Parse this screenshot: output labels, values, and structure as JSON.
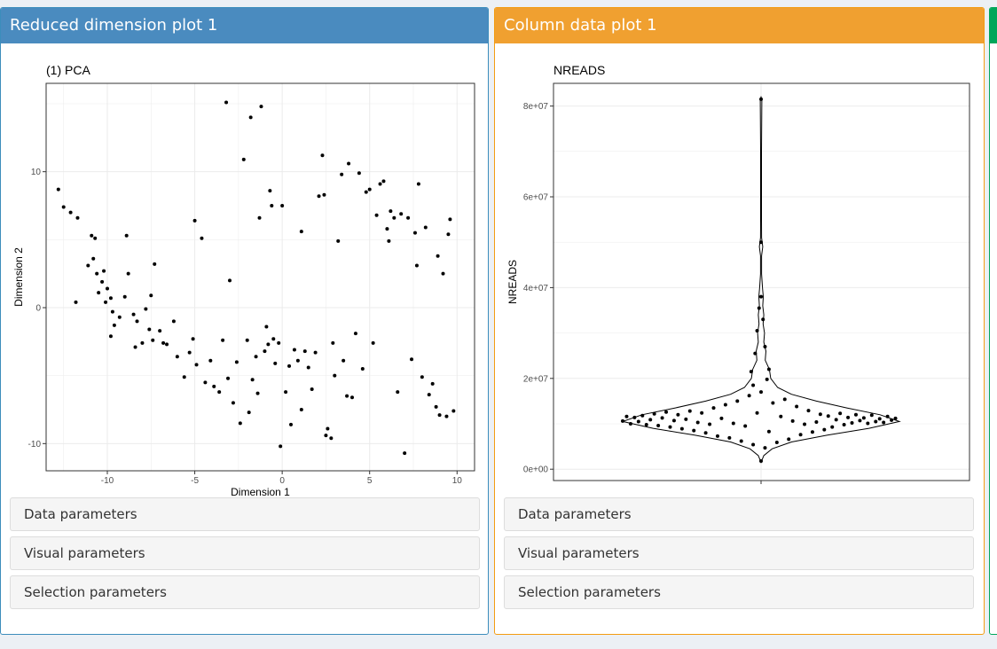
{
  "panels": {
    "left": {
      "title": "Reduced dimension plot 1",
      "accent": "#4a8bbf"
    },
    "middle": {
      "title": "Column data plot 1",
      "accent": "#f0a030"
    },
    "right": {
      "accent": "#00a65a"
    }
  },
  "accordions": {
    "left": [
      "Data parameters",
      "Visual parameters",
      "Selection parameters"
    ],
    "middle": [
      "Data parameters",
      "Visual parameters",
      "Selection parameters"
    ]
  },
  "chart_data": [
    {
      "type": "scatter",
      "title": "(1) PCA",
      "xlabel": "Dimension 1",
      "ylabel": "Dimension 2",
      "xlim": [
        -13.5,
        11
      ],
      "ylim": [
        -12,
        16.5
      ],
      "xticks": [
        -10,
        -5,
        0,
        5,
        10
      ],
      "yticks": [
        -10,
        0,
        10
      ],
      "grid": true,
      "points": [
        [
          -12.8,
          8.7
        ],
        [
          -12.5,
          7.4
        ],
        [
          -12.1,
          7.0
        ],
        [
          -11.7,
          6.6
        ],
        [
          -11.8,
          0.4
        ],
        [
          -11.1,
          3.1
        ],
        [
          -10.9,
          5.3
        ],
        [
          -10.7,
          5.1
        ],
        [
          -10.8,
          3.6
        ],
        [
          -10.6,
          2.5
        ],
        [
          -10.3,
          1.9
        ],
        [
          -10.2,
          2.7
        ],
        [
          -10.0,
          1.4
        ],
        [
          -10.5,
          1.1
        ],
        [
          -9.8,
          0.7
        ],
        [
          -10.1,
          0.4
        ],
        [
          -9.7,
          -0.3
        ],
        [
          -9.6,
          -1.3
        ],
        [
          -9.8,
          -2.1
        ],
        [
          -9.3,
          -0.7
        ],
        [
          -9.0,
          0.8
        ],
        [
          -8.8,
          2.5
        ],
        [
          -8.9,
          5.3
        ],
        [
          -8.5,
          -0.5
        ],
        [
          -8.3,
          -1.0
        ],
        [
          -8.4,
          -2.9
        ],
        [
          -8.0,
          -2.6
        ],
        [
          -7.8,
          -0.1
        ],
        [
          -7.6,
          -1.6
        ],
        [
          -7.4,
          -2.4
        ],
        [
          -7.5,
          0.9
        ],
        [
          -7.3,
          3.2
        ],
        [
          -7.0,
          -1.7
        ],
        [
          -6.8,
          -2.6
        ],
        [
          -6.6,
          -2.7
        ],
        [
          -6.2,
          -1.0
        ],
        [
          -6.0,
          -3.6
        ],
        [
          -5.6,
          -5.1
        ],
        [
          -5.3,
          -3.3
        ],
        [
          -5.1,
          -2.3
        ],
        [
          -4.9,
          -4.2
        ],
        [
          -5.0,
          6.4
        ],
        [
          -4.6,
          5.1
        ],
        [
          -4.4,
          -5.5
        ],
        [
          -4.1,
          -3.9
        ],
        [
          -3.9,
          -5.8
        ],
        [
          -3.6,
          -6.2
        ],
        [
          -3.4,
          -2.4
        ],
        [
          -3.1,
          -5.2
        ],
        [
          -3.2,
          15.1
        ],
        [
          -3.0,
          2.0
        ],
        [
          -2.8,
          -7.0
        ],
        [
          -2.6,
          -4.0
        ],
        [
          -2.4,
          -8.5
        ],
        [
          -2.2,
          10.9
        ],
        [
          -2.0,
          -2.4
        ],
        [
          -1.9,
          -7.7
        ],
        [
          -1.8,
          14.0
        ],
        [
          -1.7,
          -5.3
        ],
        [
          -1.5,
          -3.6
        ],
        [
          -1.4,
          -6.3
        ],
        [
          -1.3,
          6.6
        ],
        [
          -1.2,
          14.8
        ],
        [
          -1.0,
          -3.2
        ],
        [
          -0.9,
          -1.4
        ],
        [
          -0.8,
          -2.7
        ],
        [
          -0.7,
          8.6
        ],
        [
          -0.6,
          7.5
        ],
        [
          -0.5,
          -2.3
        ],
        [
          -0.4,
          -4.1
        ],
        [
          -0.2,
          -2.6
        ],
        [
          0.0,
          7.5
        ],
        [
          -0.1,
          -10.2
        ],
        [
          0.2,
          -6.2
        ],
        [
          0.4,
          -4.3
        ],
        [
          0.5,
          -8.6
        ],
        [
          0.7,
          -3.1
        ],
        [
          0.9,
          -3.9
        ],
        [
          1.1,
          -7.5
        ],
        [
          1.1,
          5.6
        ],
        [
          1.3,
          -3.2
        ],
        [
          1.5,
          -4.4
        ],
        [
          1.7,
          -6.0
        ],
        [
          1.9,
          -3.3
        ],
        [
          2.1,
          8.2
        ],
        [
          2.3,
          11.2
        ],
        [
          2.4,
          8.3
        ],
        [
          2.5,
          -9.4
        ],
        [
          2.6,
          -8.9
        ],
        [
          2.8,
          -9.6
        ],
        [
          2.9,
          -2.6
        ],
        [
          3.0,
          -5.0
        ],
        [
          3.2,
          4.9
        ],
        [
          3.4,
          9.8
        ],
        [
          3.5,
          -3.9
        ],
        [
          3.7,
          -6.5
        ],
        [
          3.8,
          10.6
        ],
        [
          4.0,
          -6.6
        ],
        [
          4.2,
          -1.9
        ],
        [
          4.4,
          9.9
        ],
        [
          4.6,
          -4.5
        ],
        [
          4.8,
          8.5
        ],
        [
          5.0,
          8.7
        ],
        [
          5.2,
          -2.6
        ],
        [
          5.4,
          6.8
        ],
        [
          5.6,
          9.1
        ],
        [
          5.8,
          9.3
        ],
        [
          6.0,
          5.8
        ],
        [
          6.2,
          7.1
        ],
        [
          6.4,
          6.6
        ],
        [
          6.6,
          -6.2
        ],
        [
          6.8,
          6.9
        ],
        [
          7.0,
          -10.7
        ],
        [
          7.2,
          6.6
        ],
        [
          7.4,
          -3.8
        ],
        [
          7.6,
          5.5
        ],
        [
          7.8,
          9.1
        ],
        [
          8.0,
          -5.1
        ],
        [
          8.2,
          5.9
        ],
        [
          8.4,
          -6.4
        ],
        [
          8.6,
          -5.6
        ],
        [
          8.8,
          -7.3
        ],
        [
          9.0,
          -7.9
        ],
        [
          9.2,
          2.5
        ],
        [
          9.4,
          -8.0
        ],
        [
          9.6,
          6.5
        ],
        [
          9.8,
          -7.6
        ],
        [
          9.5,
          5.4
        ],
        [
          8.9,
          3.8
        ],
        [
          7.7,
          3.1
        ],
        [
          6.1,
          4.9
        ]
      ]
    },
    {
      "type": "violin",
      "title": "NREADS",
      "xlabel": "",
      "ylabel": "NREADS",
      "ylim": [
        -2500000,
        85000000
      ],
      "yticks": [
        0,
        20000000,
        40000000,
        60000000,
        80000000
      ],
      "ytick_labels": [
        "0e+00",
        "2e+07",
        "4e+07",
        "6e+07",
        "8e+07"
      ],
      "grid": true,
      "points": [
        [
          -0.7,
          10600000
        ],
        [
          -0.68,
          11600000
        ],
        [
          -0.66,
          10000000
        ],
        [
          -0.64,
          11400000
        ],
        [
          -0.62,
          10500000
        ],
        [
          -0.6,
          11800000
        ],
        [
          -0.58,
          9800000
        ],
        [
          -0.56,
          10900000
        ],
        [
          -0.54,
          12200000
        ],
        [
          -0.52,
          9600000
        ],
        [
          -0.5,
          11300000
        ],
        [
          -0.48,
          12600000
        ],
        [
          -0.46,
          9300000
        ],
        [
          -0.44,
          10700000
        ],
        [
          -0.42,
          12000000
        ],
        [
          -0.4,
          8900000
        ],
        [
          -0.38,
          11000000
        ],
        [
          -0.36,
          12800000
        ],
        [
          -0.34,
          8500000
        ],
        [
          -0.32,
          10300000
        ],
        [
          -0.3,
          12400000
        ],
        [
          -0.28,
          8000000
        ],
        [
          -0.26,
          9900000
        ],
        [
          -0.24,
          13500000
        ],
        [
          -0.22,
          7300000
        ],
        [
          -0.2,
          11200000
        ],
        [
          -0.18,
          14200000
        ],
        [
          -0.16,
          6900000
        ],
        [
          -0.14,
          10100000
        ],
        [
          -0.12,
          15000000
        ],
        [
          -0.1,
          6200000
        ],
        [
          -0.08,
          9500000
        ],
        [
          -0.06,
          16200000
        ],
        [
          -0.04,
          5400000
        ],
        [
          -0.02,
          12400000
        ],
        [
          0.0,
          17000000
        ],
        [
          0.02,
          4700000
        ],
        [
          0.04,
          8300000
        ],
        [
          0.06,
          14600000
        ],
        [
          0.08,
          5900000
        ],
        [
          0.1,
          11600000
        ],
        [
          0.12,
          15400000
        ],
        [
          0.14,
          6600000
        ],
        [
          0.16,
          10600000
        ],
        [
          0.18,
          13800000
        ],
        [
          0.2,
          7600000
        ],
        [
          0.22,
          9900000
        ],
        [
          0.24,
          12900000
        ],
        [
          0.26,
          8200000
        ],
        [
          0.28,
          10400000
        ],
        [
          0.3,
          12100000
        ],
        [
          0.32,
          8700000
        ],
        [
          0.34,
          11700000
        ],
        [
          0.36,
          9300000
        ],
        [
          0.38,
          10900000
        ],
        [
          0.4,
          12300000
        ],
        [
          0.42,
          9800000
        ],
        [
          0.44,
          11400000
        ],
        [
          0.46,
          10200000
        ],
        [
          0.48,
          12000000
        ],
        [
          0.5,
          10700000
        ],
        [
          0.52,
          11300000
        ],
        [
          0.54,
          10100000
        ],
        [
          0.56,
          11900000
        ],
        [
          0.58,
          10500000
        ],
        [
          0.6,
          11100000
        ],
        [
          0.62,
          10300000
        ],
        [
          0.64,
          11600000
        ],
        [
          0.66,
          10800000
        ],
        [
          0.68,
          11200000
        ],
        [
          -0.04,
          18500000
        ],
        [
          0.03,
          19800000
        ],
        [
          -0.05,
          21500000
        ],
        [
          0.04,
          22000000
        ],
        [
          -0.03,
          25500000
        ],
        [
          0.02,
          27000000
        ],
        [
          -0.02,
          30500000
        ],
        [
          0.01,
          33000000
        ],
        [
          -0.01,
          35500000
        ],
        [
          0.0,
          38000000
        ],
        [
          0.0,
          50000000
        ],
        [
          0.0,
          81500000
        ],
        [
          0.0,
          1800000
        ]
      ]
    }
  ]
}
